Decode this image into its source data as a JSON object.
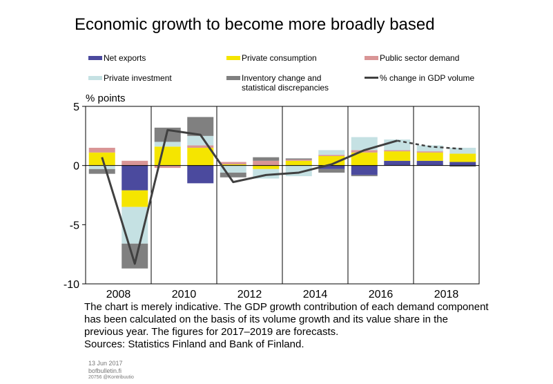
{
  "title": "Economic growth to become more broadly based",
  "legend": [
    {
      "label": "Net exports",
      "color": "#4b4a9e",
      "kind": "bar"
    },
    {
      "label": "Private consumption",
      "color": "#f5e500",
      "kind": "bar"
    },
    {
      "label": "Public sector demand",
      "color": "#d99596",
      "kind": "bar"
    },
    {
      "label": "Private investment",
      "color": "#c5e1e3",
      "kind": "bar"
    },
    {
      "label": "Inventory change and statistical discrepancies",
      "color": "#808080",
      "kind": "bar"
    },
    {
      "label": "% change in GDP volume",
      "color": "#404040",
      "kind": "line"
    }
  ],
  "note": {
    "lines": [
      "The chart is merely indicative. The GDP growth contribution of each demand component",
      "has been calculated on the basis of its volume growth and its value share in the",
      "previous year. The figures for 2017–2019 are forecasts.",
      "Sources: Statistics Finland and Bank of Finland."
    ]
  },
  "footer": {
    "date": "13 Jun 2017",
    "site": "bofbulletin.fi",
    "credit": "20756 @Kontribuutio"
  },
  "chart_data": {
    "type": "bar",
    "stacked": true,
    "ylabel": "% points",
    "ylim": [
      -10,
      5
    ],
    "yticks": [
      5,
      0,
      -5,
      -10
    ],
    "x": [
      2008,
      2009,
      2010,
      2011,
      2012,
      2013,
      2014,
      2015,
      2016,
      2017,
      2018,
      2019
    ],
    "xtick_labels": [
      "2008",
      "2010",
      "2012",
      "2014",
      "2016",
      "2018"
    ],
    "forecast_from": 2017,
    "series": [
      {
        "name": "Net exports",
        "values": [
          0.0,
          -2.1,
          0.0,
          -1.5,
          0.0,
          0.0,
          0.0,
          -0.3,
          -0.8,
          0.4,
          0.4,
          0.3
        ]
      },
      {
        "name": "Private consumption",
        "values": [
          1.1,
          -1.4,
          1.6,
          1.5,
          0.1,
          -0.3,
          0.4,
          0.8,
          1.1,
          0.8,
          0.7,
          0.7
        ]
      },
      {
        "name": "Public sector demand",
        "values": [
          0.4,
          0.4,
          -0.2,
          0.2,
          0.2,
          0.4,
          0.1,
          0.1,
          0.2,
          0.1,
          0.1,
          0.0
        ]
      },
      {
        "name": "Private investment",
        "values": [
          -0.3,
          -3.1,
          0.4,
          0.8,
          -0.6,
          -0.8,
          -0.9,
          0.4,
          1.1,
          0.9,
          0.5,
          0.5
        ]
      },
      {
        "name": "Inventory change and statistical discrepancies",
        "values": [
          -0.4,
          -2.1,
          1.2,
          1.6,
          -0.4,
          0.3,
          0.1,
          -0.3,
          -0.1,
          0.0,
          0.0,
          -0.1
        ]
      }
    ],
    "line": {
      "name": "% change in GDP volume",
      "values": [
        0.7,
        -8.3,
        3.0,
        2.6,
        -1.4,
        -0.8,
        -0.6,
        0.1,
        1.3,
        2.1,
        1.6,
        1.4
      ]
    }
  }
}
